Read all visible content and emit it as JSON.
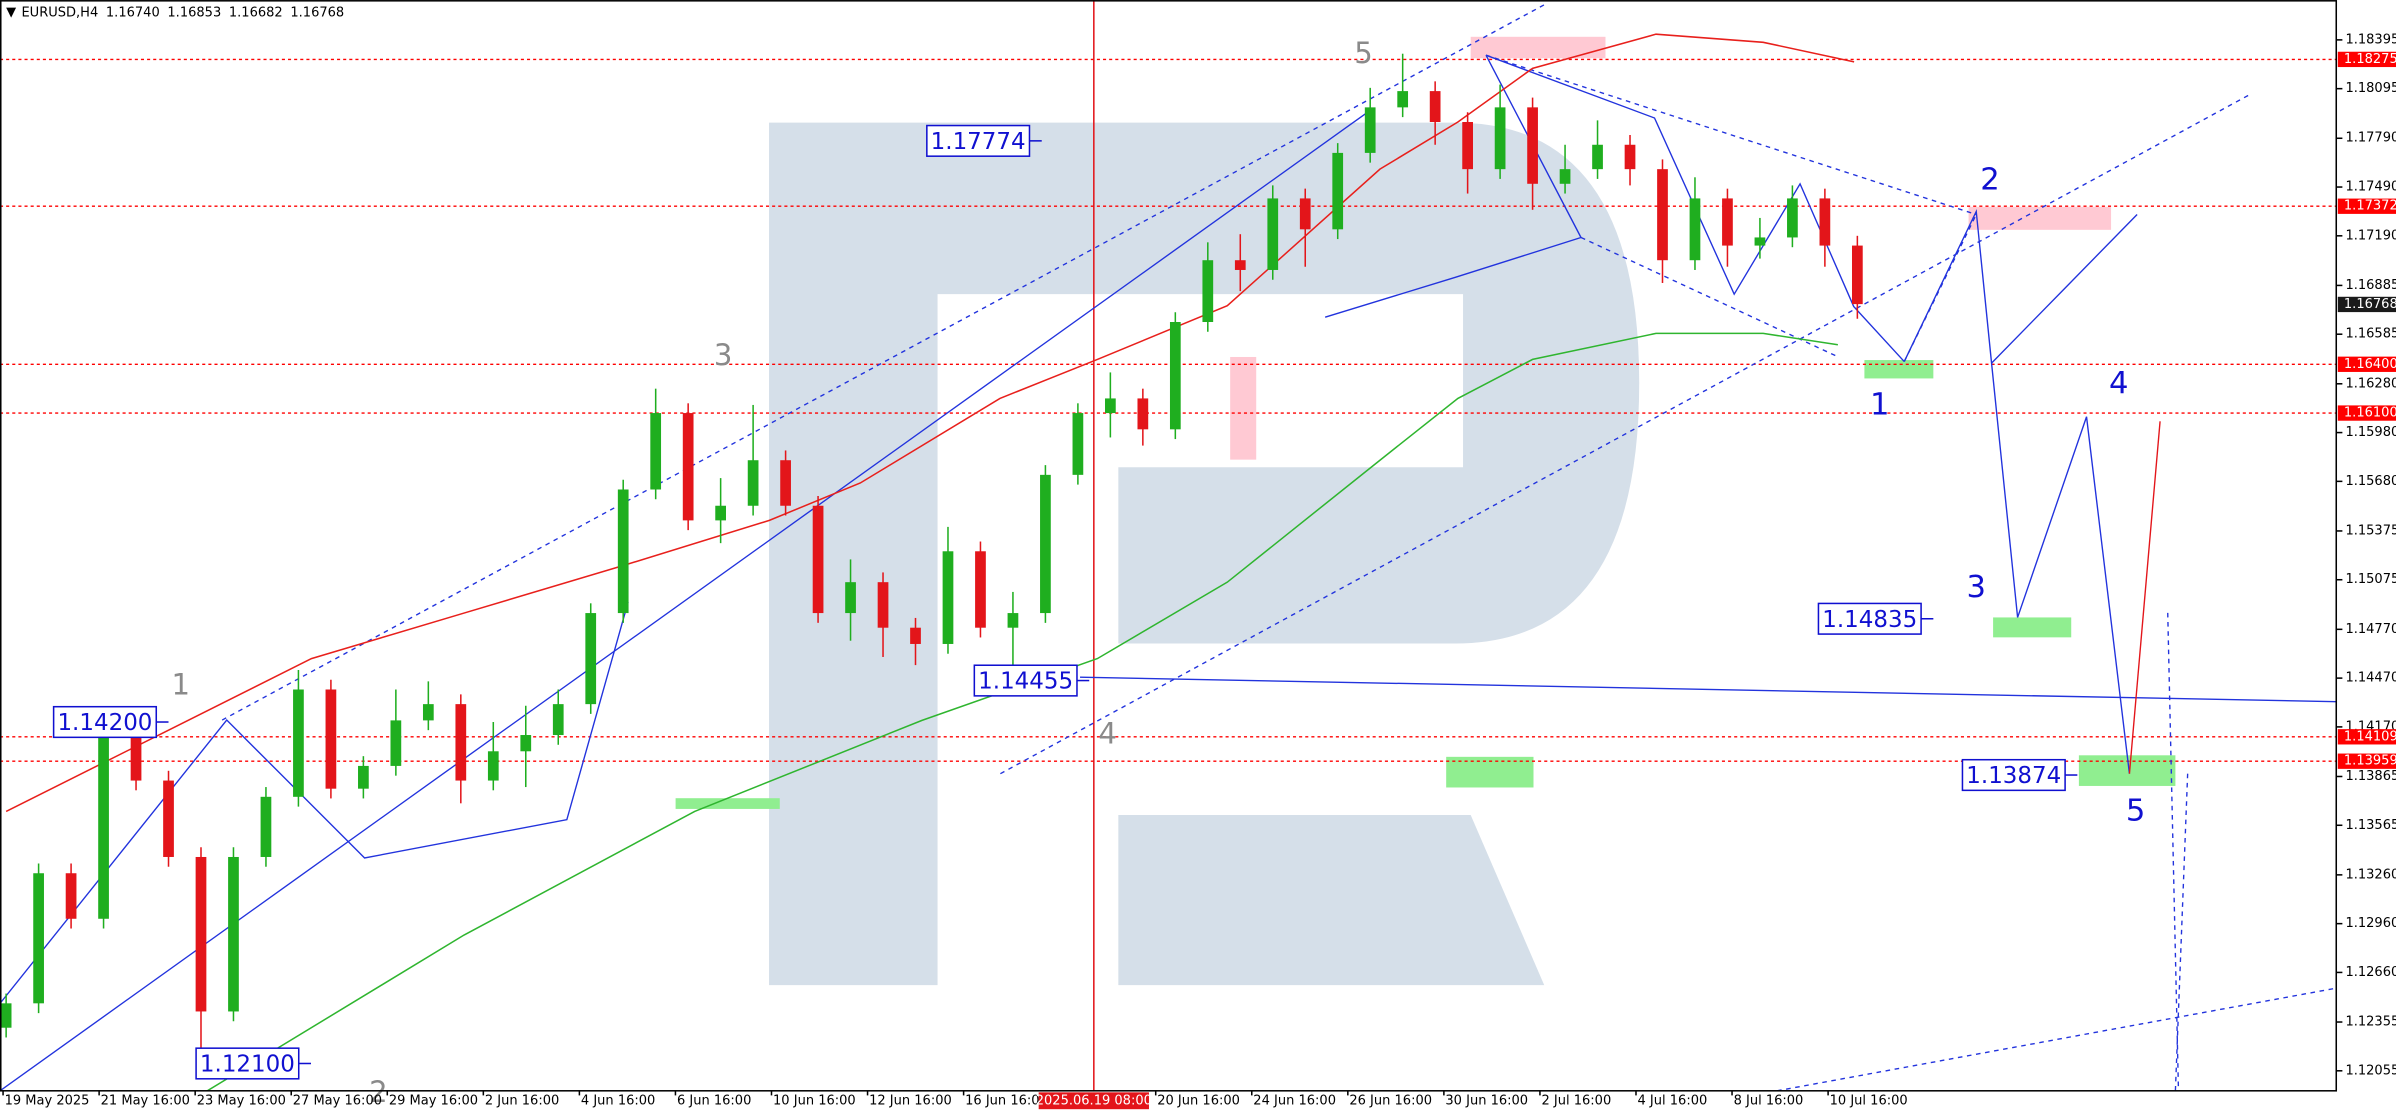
{
  "chart_data": {
    "type": "candlestick",
    "title": "EURUSD,H4",
    "header_values": [
      {
        "value": 1.1674,
        "label": "1.16740"
      },
      1.16853,
      1.16682,
      1.16768
    ],
    "ylim": [
      1.11932,
      1.1864
    ],
    "yticks": [
      1.18395,
      1.18095,
      {
        "value": 1.1779,
        "label": "1.17790"
      },
      {
        "value": 1.1749,
        "label": "1.17490"
      },
      {
        "value": 1.1719,
        "label": "1.17190"
      },
      1.16885,
      1.16585,
      {
        "value": 1.1628,
        "label": "1.16280"
      },
      {
        "value": 1.1598,
        "label": "1.15980"
      },
      {
        "value": 1.1568,
        "label": "1.15680"
      },
      1.15375,
      1.15075,
      {
        "value": 1.1477,
        "label": "1.14770"
      },
      {
        "value": 1.1447,
        "label": "1.14470"
      },
      {
        "value": 1.1417,
        "label": "1.14170"
      },
      1.13865,
      1.13565,
      {
        "value": 1.1326,
        "label": "1.13260"
      },
      {
        "value": 1.1296,
        "label": "1.12960"
      },
      {
        "value": 1.1266,
        "label": "1.12660"
      },
      1.12355,
      1.12055
    ],
    "xlabels": [
      "19 May 2025",
      "21 May 16:00",
      "23 May 16:00",
      "27 May 16:00",
      "29 May 16:00",
      "2 Jun 16:00",
      "4 Jun 16:00",
      "6 Jun 16:00",
      "10 Jun 16:00",
      "12 Jun 16:00",
      "16 Jun 16:00",
      "20 Jun 16:00",
      "24 Jun 16:00",
      "26 Jun 16:00",
      "30 Jun 16:00",
      "2 Jul 16:00",
      "4 Jul 16:00",
      "8 Jul 16:00",
      "10 Jul 16:00"
    ],
    "crosshair_time": "2025.06.19 08:00",
    "up_color": "#1fae1f",
    "down_color": "#e3151a",
    "open": [
      1.1232,
      1.1247,
      1.1327,
      1.1299,
      1.1412,
      1.1384,
      1.1337,
      1.1242,
      1.1337,
      1.1374,
      1.144,
      1.1379,
      1.1393,
      1.1421,
      1.1431,
      1.1384,
      1.1402,
      1.1412,
      1.1431,
      1.1487,
      1.1563,
      1.161,
      1.1544,
      1.1553,
      1.1581,
      1.1553,
      1.1487,
      1.1506,
      1.1478,
      1.1468,
      1.1525,
      1.1478,
      1.1487,
      1.1572,
      1.161,
      1.1619,
      1.16,
      1.1666,
      1.1704,
      1.1698,
      1.1742,
      1.1723,
      1.177,
      1.1798,
      1.1808,
      1.1789,
      1.176,
      1.1798,
      1.1751,
      1.176,
      1.1775,
      1.176,
      1.1704,
      1.1742,
      1.1713,
      1.1718,
      1.1742,
      1.1713
    ],
    "high": [
      1.1253,
      1.1333,
      1.1333,
      1.142,
      1.1418,
      1.139,
      1.1343,
      1.1343,
      1.138,
      1.1452,
      1.1446,
      1.1399,
      1.144,
      1.1445,
      1.1437,
      1.142,
      1.143,
      1.144,
      1.1493,
      1.1569,
      1.1625,
      1.1616,
      1.157,
      1.1615,
      1.1587,
      1.1559,
      1.152,
      1.1512,
      1.1484,
      1.154,
      1.1531,
      1.15,
      1.1578,
      1.1616,
      1.1635,
      1.1625,
      1.1672,
      1.1715,
      1.172,
      1.175,
      1.1748,
      1.1776,
      1.181,
      1.1831,
      1.1814,
      1.1795,
      1.1812,
      1.1804,
      1.1775,
      1.179,
      1.1781,
      1.1766,
      1.1755,
      1.1748,
      1.173,
      1.175,
      1.1748,
      1.1719
    ],
    "low": [
      1.1226,
      1.1241,
      1.1293,
      1.1293,
      1.1378,
      1.1331,
      1.1215,
      1.1236,
      1.1331,
      1.1368,
      1.1373,
      1.1373,
      1.1387,
      1.1415,
      1.137,
      1.1378,
      1.138,
      1.1406,
      1.1425,
      1.1481,
      1.1557,
      1.1538,
      1.153,
      1.1547,
      1.1547,
      1.1481,
      1.147,
      1.146,
      1.1455,
      1.1462,
      1.1472,
      1.1455,
      1.1481,
      1.1566,
      1.1595,
      1.159,
      1.1594,
      1.166,
      1.1685,
      1.1692,
      1.17,
      1.1717,
      1.1764,
      1.1792,
      1.1775,
      1.1745,
      1.1754,
      1.1735,
      1.1745,
      1.1754,
      1.175,
      1.169,
      1.1698,
      1.17,
      1.1705,
      1.1712,
      1.17,
      1.1668
    ],
    "close": [
      1.1247,
      1.1327,
      1.1299,
      1.1412,
      1.1384,
      1.1337,
      1.1242,
      1.1337,
      1.1374,
      1.144,
      1.1379,
      1.1393,
      1.1421,
      1.1431,
      1.1384,
      1.1402,
      1.1412,
      1.1431,
      1.1487,
      1.1563,
      1.161,
      1.1544,
      1.1553,
      1.1581,
      1.1553,
      1.1487,
      1.1506,
      1.1478,
      1.1468,
      1.1525,
      1.1478,
      1.1487,
      1.1572,
      1.161,
      1.1619,
      1.16,
      1.1666,
      1.1704,
      1.1698,
      1.1742,
      1.1723,
      1.177,
      1.1798,
      1.1808,
      1.1789,
      1.176,
      1.1798,
      1.1751,
      1.176,
      1.1775,
      1.176,
      1.1704,
      1.1742,
      1.1713,
      1.1718,
      1.1742,
      1.1713,
      1.1677
    ],
    "moving_averages": [
      {
        "color": "#e8201c",
        "x": [
          0,
          4.7,
          9.4,
          14.1,
          18.8,
          23.5,
          26.3,
          30.6,
          33.6,
          37.6,
          42.3,
          44.7,
          47,
          50.8,
          54.1,
          56.9
        ],
        "values": [
          1.1365,
          1.1412,
          1.1459,
          1.1487,
          1.1515,
          1.1544,
          1.1567,
          1.1619,
          1.1643,
          1.1676,
          1.176,
          1.1789,
          1.1822,
          1.1843,
          1.1838,
          1.1826
        ]
      },
      {
        "color": "#2fb52f",
        "x": [
          5.6,
          14.1,
          21.2,
          28.2,
          33.6,
          37.6,
          42.3,
          44.7,
          47,
          50.8,
          54.1,
          56.4
        ],
        "values": [
          1.1186,
          1.1289,
          1.1365,
          1.1421,
          1.1459,
          1.1506,
          1.1581,
          1.1619,
          1.1643,
          1.1659,
          1.1659,
          1.1652
        ]
      }
    ],
    "levels": [
      1.18275,
      1.17372,
      {
        "value": 1.164,
        "label": "1.16400"
      },
      {
        "value": 1.161,
        "label": "1.16100"
      },
      1.14109,
      1.13959
    ],
    "level_color": "#ff0000",
    "current_price": 1.16768,
    "price_labels": [
      1.17774,
      1.14455,
      1.14835,
      1.13874,
      {
        "value": 1.142,
        "label": "1.14200"
      },
      {
        "value": 1.121,
        "label": "1.12100"
      }
    ],
    "gray_waves": [
      "5",
      "3",
      "1",
      "4",
      "2"
    ],
    "blue_waves": [
      "1",
      "2",
      "3",
      "4",
      "5"
    ]
  }
}
